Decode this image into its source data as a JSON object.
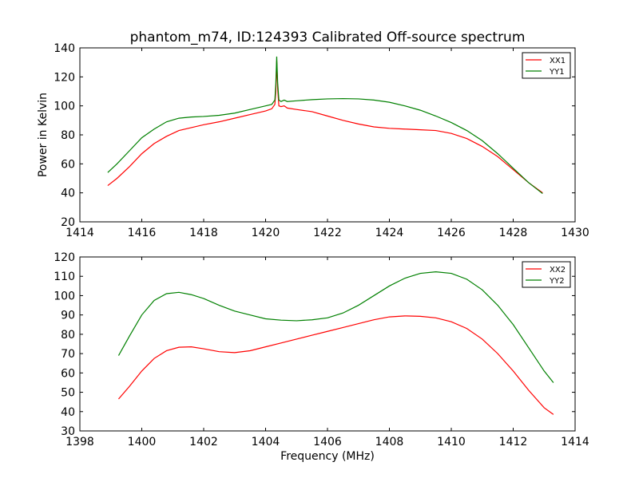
{
  "figure": {
    "background": "#ffffff"
  },
  "chart_data": [
    {
      "type": "line",
      "title": "phantom_m74, ID:124393 Calibrated Off-source spectrum",
      "xlabel": "",
      "ylabel": "Power in Kelvin",
      "xlim": [
        1414,
        1430
      ],
      "ylim": [
        20,
        140
      ],
      "xticks": [
        1414,
        1416,
        1418,
        1420,
        1422,
        1424,
        1426,
        1428,
        1430
      ],
      "yticks": [
        20,
        40,
        60,
        80,
        100,
        120,
        140
      ],
      "grid": false,
      "legend": "top-right",
      "series": [
        {
          "name": "XX1",
          "color": "#ff0000",
          "points": [
            [
              1414.9,
              45
            ],
            [
              1415.2,
              50
            ],
            [
              1415.6,
              58
            ],
            [
              1416.0,
              67
            ],
            [
              1416.4,
              74
            ],
            [
              1416.8,
              79
            ],
            [
              1417.2,
              83
            ],
            [
              1417.6,
              85
            ],
            [
              1418.0,
              87
            ],
            [
              1418.5,
              89
            ],
            [
              1419.0,
              91.5
            ],
            [
              1419.5,
              94
            ],
            [
              1420.0,
              96.5
            ],
            [
              1420.2,
              98
            ],
            [
              1420.3,
              101
            ],
            [
              1420.33,
              110
            ],
            [
              1420.36,
              131
            ],
            [
              1420.39,
              112
            ],
            [
              1420.43,
              100
            ],
            [
              1420.5,
              99.5
            ],
            [
              1420.6,
              100
            ],
            [
              1420.7,
              98.5
            ],
            [
              1421.0,
              97.5
            ],
            [
              1421.5,
              96
            ],
            [
              1422.0,
              93
            ],
            [
              1422.5,
              90
            ],
            [
              1423.0,
              87.5
            ],
            [
              1423.5,
              85.5
            ],
            [
              1424.0,
              84.5
            ],
            [
              1424.5,
              84
            ],
            [
              1425.0,
              83.5
            ],
            [
              1425.5,
              83
            ],
            [
              1426.0,
              81
            ],
            [
              1426.5,
              77.5
            ],
            [
              1427.0,
              72
            ],
            [
              1427.5,
              65
            ],
            [
              1428.0,
              56
            ],
            [
              1428.5,
              47
            ],
            [
              1428.95,
              40
            ]
          ]
        },
        {
          "name": "YY1",
          "color": "#008000",
          "points": [
            [
              1414.9,
              54
            ],
            [
              1415.2,
              60
            ],
            [
              1415.6,
              69
            ],
            [
              1416.0,
              78
            ],
            [
              1416.4,
              84
            ],
            [
              1416.8,
              89
            ],
            [
              1417.2,
              91.5
            ],
            [
              1417.6,
              92.3
            ],
            [
              1418.0,
              92.7
            ],
            [
              1418.5,
              93.5
            ],
            [
              1419.0,
              95
            ],
            [
              1419.5,
              97.5
            ],
            [
              1420.0,
              100
            ],
            [
              1420.2,
              101
            ],
            [
              1420.3,
              104
            ],
            [
              1420.33,
              115
            ],
            [
              1420.36,
              134
            ],
            [
              1420.39,
              116
            ],
            [
              1420.43,
              104
            ],
            [
              1420.5,
              103
            ],
            [
              1420.6,
              104
            ],
            [
              1420.7,
              103
            ],
            [
              1421.0,
              103.5
            ],
            [
              1421.5,
              104.3
            ],
            [
              1422.0,
              104.8
            ],
            [
              1422.5,
              105
            ],
            [
              1423.0,
              104.8
            ],
            [
              1423.5,
              104
            ],
            [
              1424.0,
              102.5
            ],
            [
              1424.5,
              100
            ],
            [
              1425.0,
              97
            ],
            [
              1425.5,
              93
            ],
            [
              1426.0,
              88.5
            ],
            [
              1426.5,
              83
            ],
            [
              1427.0,
              76
            ],
            [
              1427.5,
              67
            ],
            [
              1428.0,
              57
            ],
            [
              1428.5,
              47
            ],
            [
              1428.95,
              39.5
            ]
          ]
        }
      ]
    },
    {
      "type": "line",
      "title": "",
      "xlabel": "Frequency (MHz)",
      "ylabel": "",
      "xlim": [
        1398,
        1414
      ],
      "ylim": [
        30,
        120
      ],
      "xticks": [
        1398,
        1400,
        1402,
        1404,
        1406,
        1408,
        1410,
        1412,
        1414
      ],
      "yticks": [
        30,
        40,
        50,
        60,
        70,
        80,
        90,
        100,
        110,
        120
      ],
      "grid": false,
      "legend": "top-right",
      "series": [
        {
          "name": "XX2",
          "color": "#ff0000",
          "points": [
            [
              1399.25,
              46.5
            ],
            [
              1399.6,
              53
            ],
            [
              1400.0,
              61
            ],
            [
              1400.4,
              67.5
            ],
            [
              1400.8,
              71.5
            ],
            [
              1401.2,
              73.3
            ],
            [
              1401.6,
              73.5
            ],
            [
              1402.0,
              72.5
            ],
            [
              1402.5,
              71
            ],
            [
              1403.0,
              70.5
            ],
            [
              1403.5,
              71.5
            ],
            [
              1404.0,
              73.5
            ],
            [
              1404.5,
              75.5
            ],
            [
              1405.0,
              77.5
            ],
            [
              1405.5,
              79.5
            ],
            [
              1406.0,
              81.5
            ],
            [
              1406.5,
              83.5
            ],
            [
              1407.0,
              85.5
            ],
            [
              1407.5,
              87.5
            ],
            [
              1408.0,
              89
            ],
            [
              1408.5,
              89.5
            ],
            [
              1409.0,
              89.3
            ],
            [
              1409.5,
              88.5
            ],
            [
              1410.0,
              86.5
            ],
            [
              1410.5,
              83
            ],
            [
              1411.0,
              77.5
            ],
            [
              1411.5,
              70
            ],
            [
              1412.0,
              61
            ],
            [
              1412.5,
              51
            ],
            [
              1413.0,
              42
            ],
            [
              1413.3,
              38.5
            ]
          ]
        },
        {
          "name": "YY2",
          "color": "#008000",
          "points": [
            [
              1399.25,
              69
            ],
            [
              1399.6,
              79
            ],
            [
              1400.0,
              90
            ],
            [
              1400.4,
              97.5
            ],
            [
              1400.8,
              101
            ],
            [
              1401.2,
              101.7
            ],
            [
              1401.6,
              100.5
            ],
            [
              1402.0,
              98.5
            ],
            [
              1402.5,
              95
            ],
            [
              1403.0,
              92
            ],
            [
              1403.5,
              90
            ],
            [
              1404.0,
              88
            ],
            [
              1404.5,
              87.3
            ],
            [
              1405.0,
              87
            ],
            [
              1405.5,
              87.5
            ],
            [
              1406.0,
              88.5
            ],
            [
              1406.5,
              91
            ],
            [
              1407.0,
              95
            ],
            [
              1407.5,
              100
            ],
            [
              1408.0,
              105
            ],
            [
              1408.5,
              109
            ],
            [
              1409.0,
              111.5
            ],
            [
              1409.5,
              112.3
            ],
            [
              1410.0,
              111.5
            ],
            [
              1410.5,
              108.5
            ],
            [
              1411.0,
              103
            ],
            [
              1411.5,
              95
            ],
            [
              1412.0,
              85
            ],
            [
              1412.5,
              73
            ],
            [
              1413.0,
              61
            ],
            [
              1413.3,
              55
            ]
          ]
        }
      ]
    }
  ]
}
